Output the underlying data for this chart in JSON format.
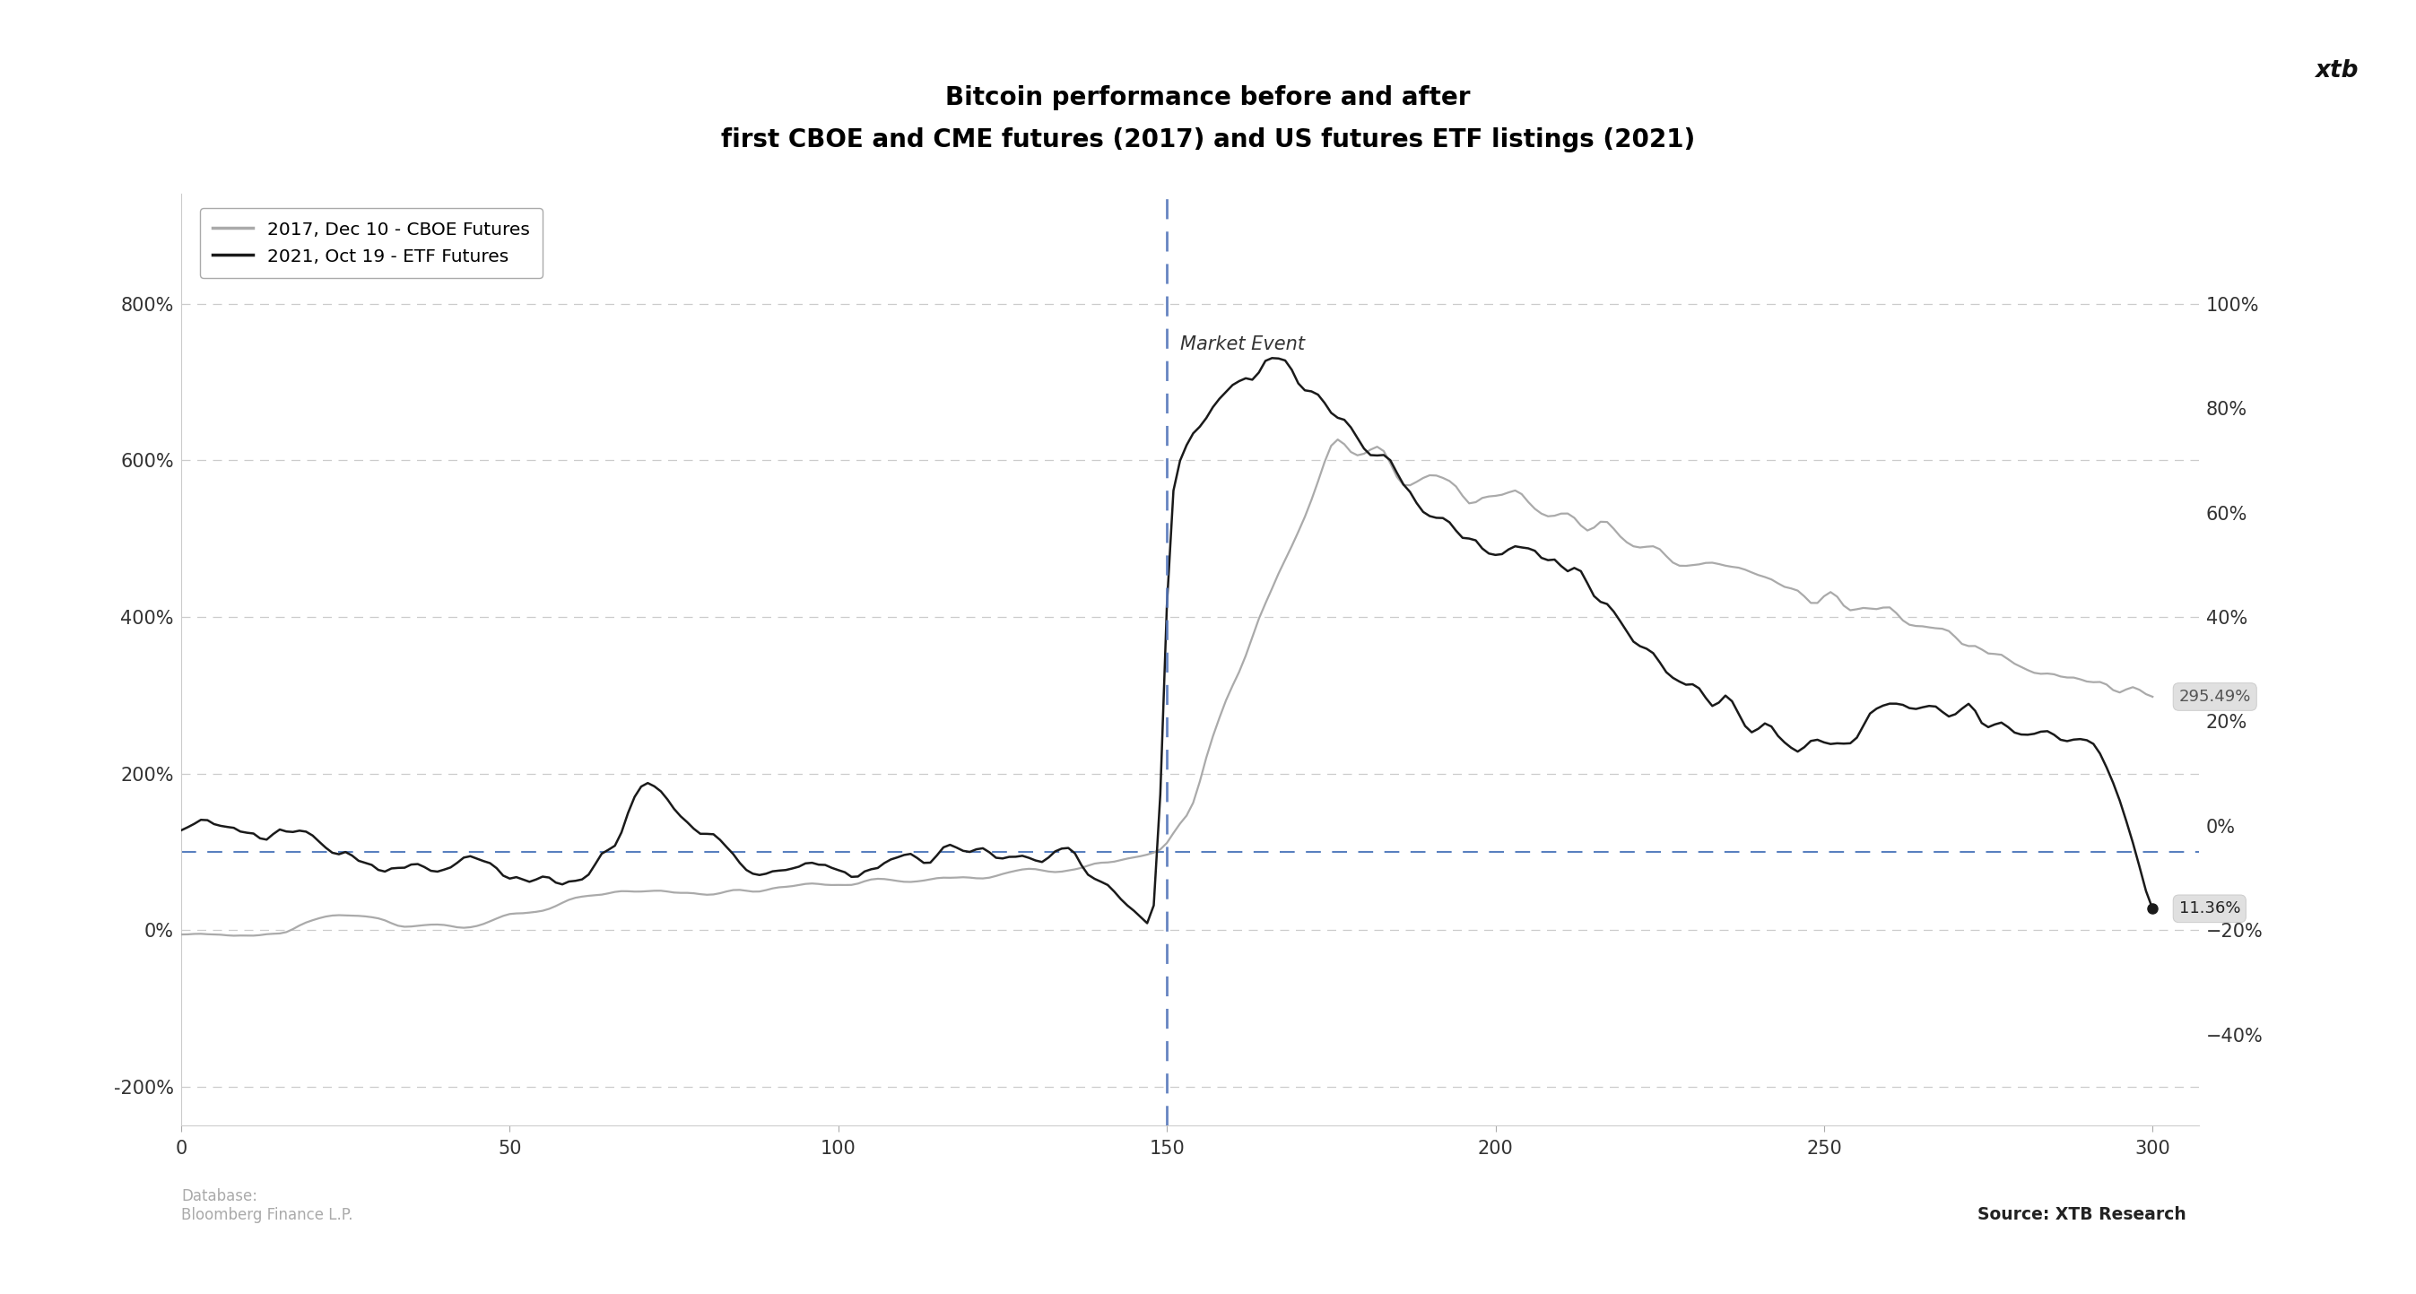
{
  "title_line1": "Bitcoin performance before and after",
  "title_line2": "first CBOE and CME futures (2017) and US futures ETF listings (2021)",
  "legend_entries": [
    "2017, Dec 10 - CBOE Futures",
    "2021, Oct 19 - ETF Futures"
  ],
  "legend_colors": [
    "#aaaaaa",
    "#1a1a1a"
  ],
  "market_event_label": "Market Event",
  "market_event_x": 150,
  "xlim": [
    0,
    307
  ],
  "ylim_left": [
    -250,
    940
  ],
  "yticks_left": [
    -200,
    0,
    200,
    400,
    600,
    800
  ],
  "xticks": [
    0,
    50,
    100,
    150,
    200,
    250,
    300
  ],
  "label_295": "295.49%",
  "label_11": "11.36%",
  "source_text": "Source: XTB Research",
  "database_text": "Database:\nBloomberg Finance L.P.",
  "bg_color": "#ffffff",
  "grid_color": "#cccccc",
  "vline_color": "#5577bb",
  "hline_color": "#2255aa",
  "hline_y": 100
}
